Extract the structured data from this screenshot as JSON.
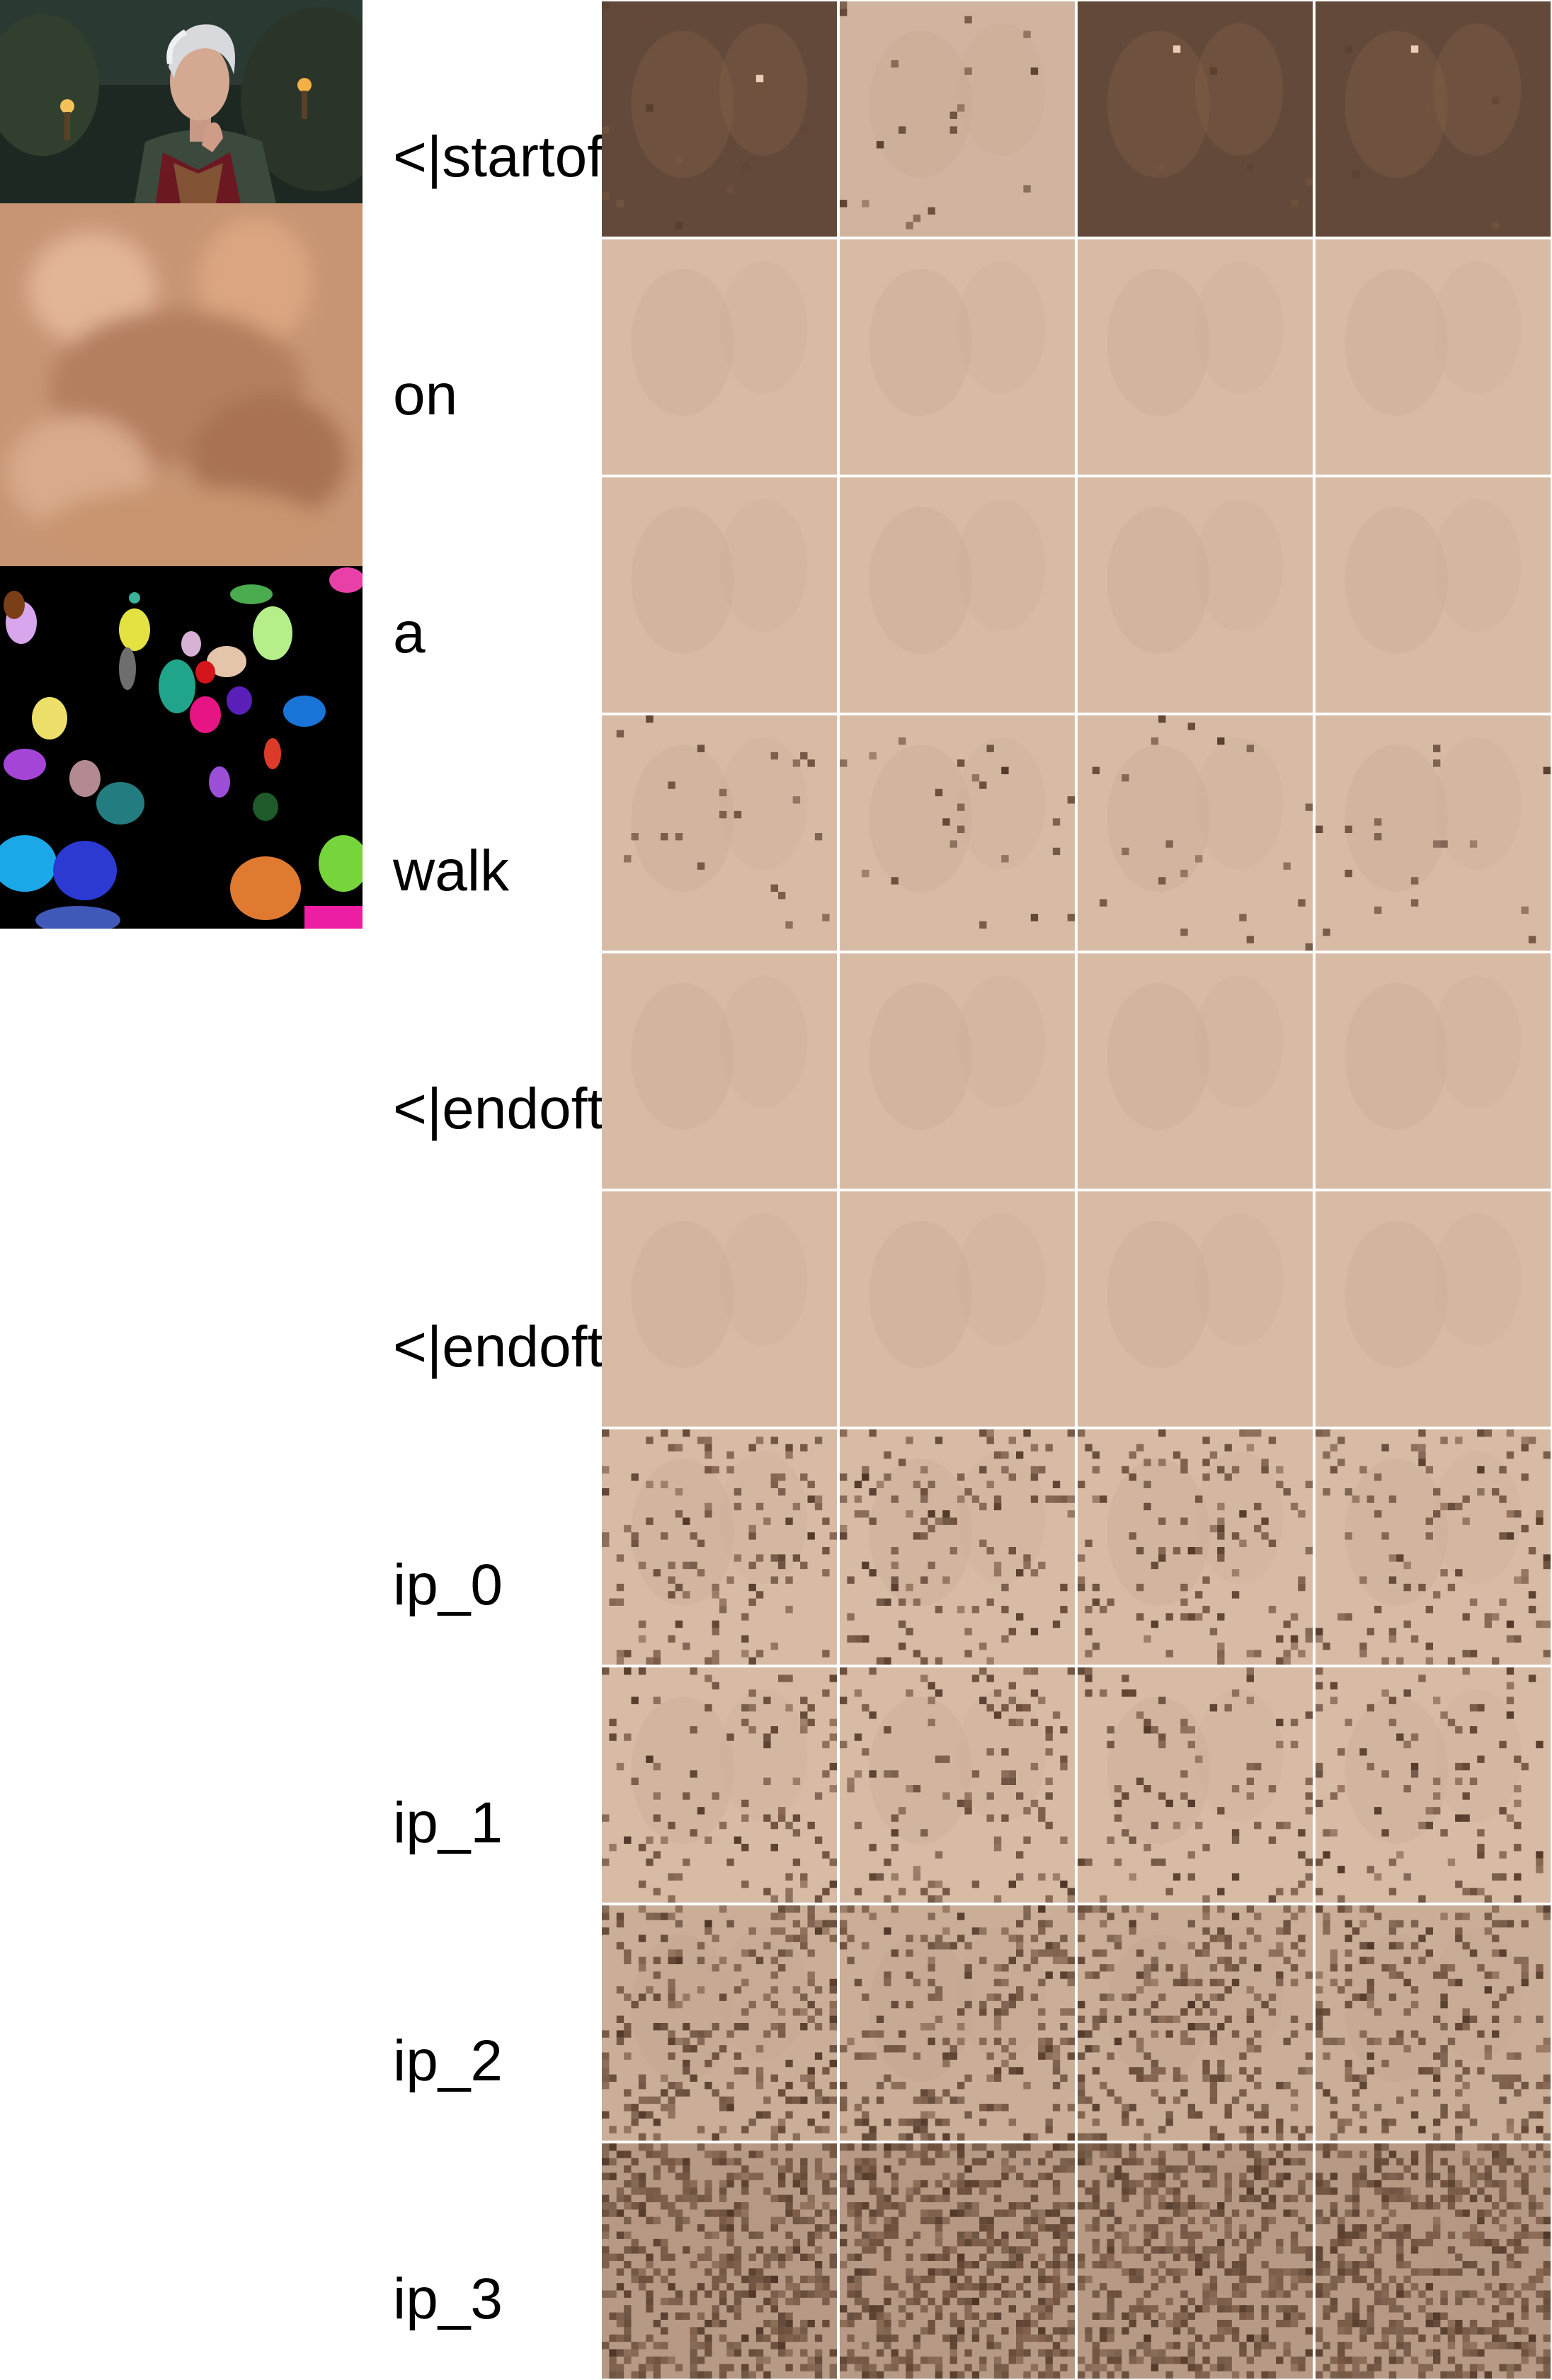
{
  "tokens": [
    {
      "label": "<|startoftext|>"
    },
    {
      "label": "on"
    },
    {
      "label": "a"
    },
    {
      "label": "walk"
    },
    {
      "label": "<|endoftext|>"
    },
    {
      "label": "<|endoftext|>"
    },
    {
      "label": "ip_0"
    },
    {
      "label": "ip_1"
    },
    {
      "label": "ip_2"
    },
    {
      "label": "ip_3"
    }
  ],
  "columns": 4,
  "thumbnails": [
    {
      "kind": "photo",
      "alt": "character portrait"
    },
    {
      "kind": "blurred-composite"
    },
    {
      "kind": "segmentation-mask"
    }
  ],
  "colors": {
    "base_tan": "#d8bba5",
    "dark_brown": "#4e3526",
    "mid_brown": "#7a5a44",
    "mask_background": "#000000"
  }
}
